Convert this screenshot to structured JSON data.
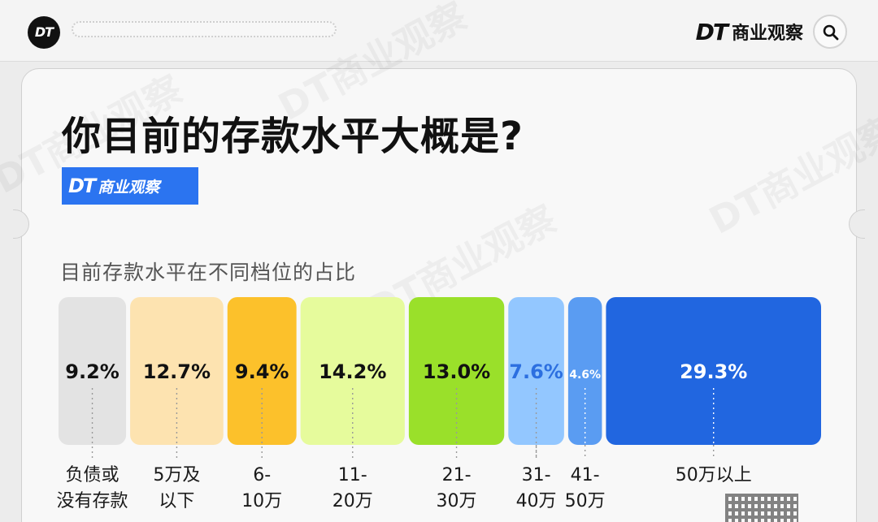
{
  "header": {
    "logo_text": "DT",
    "brand_mark": "DT",
    "brand_name": "商业观察",
    "search_icon": "search-icon"
  },
  "card": {
    "title": "你目前的存款水平大概是?",
    "badge_mark": "DT",
    "badge_name": "商业观察",
    "watermark": "DT商业观察"
  },
  "chart_data": {
    "type": "bar",
    "subtitle": "目前存款水平在不同档位的占比",
    "unit": "%",
    "categories": [
      [
        "负债或",
        "没有存款"
      ],
      [
        "5万及",
        "以下"
      ],
      [
        "6-",
        "10万"
      ],
      [
        "11-",
        "20万"
      ],
      [
        "21-",
        "30万"
      ],
      [
        "31-",
        "40万"
      ],
      [
        "41-",
        "50万"
      ],
      [
        "50万以上"
      ]
    ],
    "values": [
      9.2,
      12.7,
      9.4,
      14.2,
      13.0,
      7.6,
      4.6,
      29.3
    ],
    "labels": [
      "9.2%",
      "12.7%",
      "9.4%",
      "14.2%",
      "13.0%",
      "7.6%",
      "4.6%",
      "29.3%"
    ],
    "colors": [
      "#e3e3e3",
      "#fde3b0",
      "#fcc12b",
      "#e6fb9c",
      "#9ae02a",
      "#93c7ff",
      "#5a9cf2",
      "#2166e0"
    ],
    "label_colors": [
      "#111111",
      "#111111",
      "#111111",
      "#111111",
      "#111111",
      "#2c6fe0",
      "#ffffff",
      "#ffffff"
    ],
    "layout_note": "marimekko: bar width proportional to share, equal height"
  }
}
